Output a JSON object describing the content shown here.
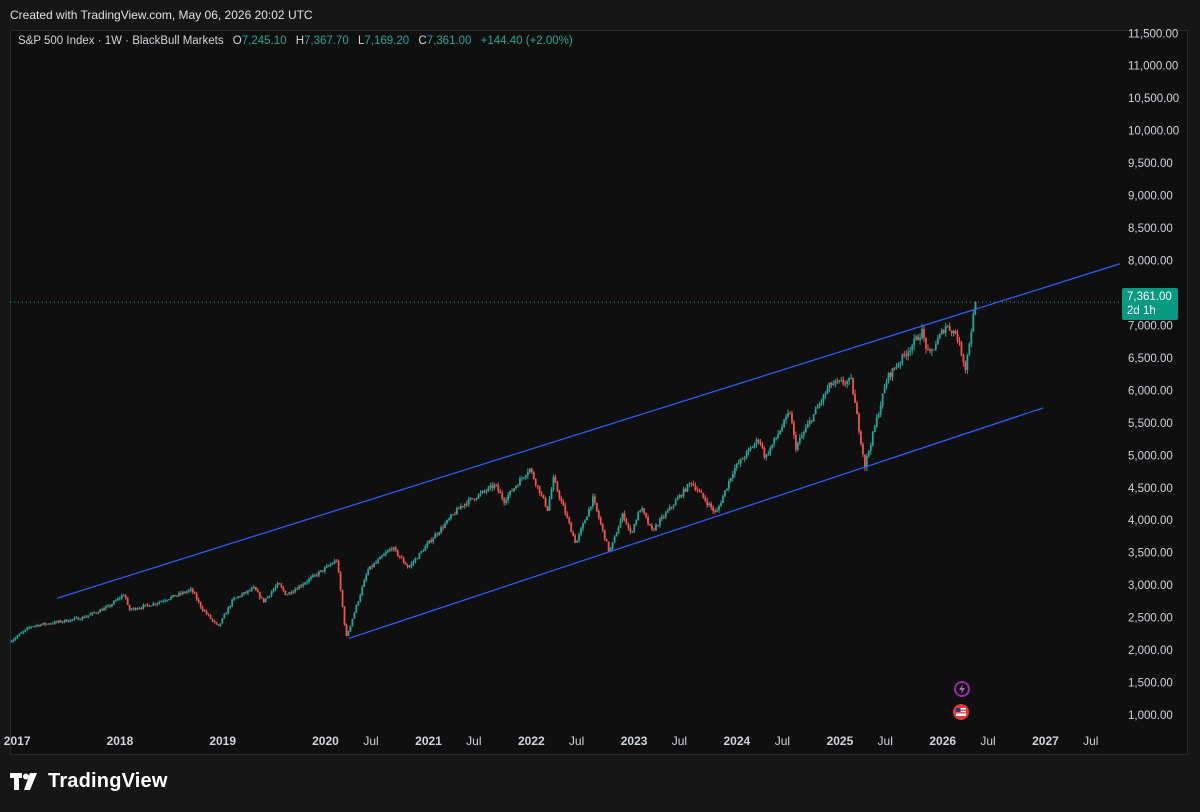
{
  "header": {
    "created_text": "Created with TradingView.com, May 06, 2026 20:02 UTC"
  },
  "legend": {
    "symbol": "S&P 500 Index · 1W · BlackBull Markets",
    "open_label": "O",
    "open": "7,245.10",
    "high_label": "H",
    "high": "7,367.70",
    "low_label": "L",
    "low": "7,169.20",
    "close_label": "C",
    "close": "7,361.00",
    "change": "+144.40 (+2.00%)"
  },
  "price_tag": {
    "price": "7,361.00",
    "countdown": "2d 1h"
  },
  "footer": {
    "brand": "TradingView"
  },
  "icons": {
    "event1": "lightning-icon",
    "event2": "us-flag-icon"
  },
  "colors": {
    "background": "#0f0f0f",
    "up": "#26a69a",
    "down": "#ef5350",
    "trendline": "#2962ff",
    "price_line": "#26a69a"
  },
  "chart_data": {
    "type": "candlestick",
    "title": "S&P 500 Index · 1W · BlackBull Markets",
    "interval": "1W",
    "y_axis": {
      "position": "right",
      "ticks": [
        "1,000.00",
        "1,500.00",
        "2,000.00",
        "2,500.00",
        "3,000.00",
        "3,500.00",
        "4,000.00",
        "4,500.00",
        "5,000.00",
        "5,500.00",
        "6,000.00",
        "6,500.00",
        "7,000.00",
        "7,500.00",
        "8,000.00",
        "8,500.00",
        "9,000.00",
        "9,500.00",
        "10,000.00",
        "10,500.00",
        "11,000.00",
        "11,500.00"
      ],
      "range": [
        800,
        11550
      ]
    },
    "x_axis": {
      "range": [
        "2016-12-15",
        "2027-10-01"
      ],
      "ticks": [
        {
          "label": "2017",
          "date": "2017-01-01",
          "bold": true
        },
        {
          "label": "2018",
          "date": "2018-01-01",
          "bold": true
        },
        {
          "label": "2019",
          "date": "2019-01-01",
          "bold": true
        },
        {
          "label": "2020",
          "date": "2020-01-01",
          "bold": true
        },
        {
          "label": "Jul",
          "date": "2020-07-01",
          "bold": false
        },
        {
          "label": "2021",
          "date": "2021-01-01",
          "bold": true
        },
        {
          "label": "Jul",
          "date": "2021-07-01",
          "bold": false
        },
        {
          "label": "2022",
          "date": "2022-01-01",
          "bold": true
        },
        {
          "label": "Jul",
          "date": "2022-07-01",
          "bold": false
        },
        {
          "label": "2023",
          "date": "2023-01-01",
          "bold": true
        },
        {
          "label": "Jul",
          "date": "2023-07-01",
          "bold": false
        },
        {
          "label": "2024",
          "date": "2024-01-01",
          "bold": true
        },
        {
          "label": "Jul",
          "date": "2024-07-01",
          "bold": false
        },
        {
          "label": "2025",
          "date": "2025-01-01",
          "bold": true
        },
        {
          "label": "Jul",
          "date": "2025-07-01",
          "bold": false
        },
        {
          "label": "2026",
          "date": "2026-01-01",
          "bold": true
        },
        {
          "label": "Jul",
          "date": "2026-07-01",
          "bold": false
        },
        {
          "label": "2027",
          "date": "2027-01-01",
          "bold": true
        },
        {
          "label": "Jul",
          "date": "2027-07-01",
          "bold": false
        }
      ]
    },
    "grid": false,
    "price_path": [
      [
        "2016-12-20",
        2150
      ],
      [
        "2017-03-01",
        2370
      ],
      [
        "2017-06-01",
        2430
      ],
      [
        "2017-09-01",
        2500
      ],
      [
        "2017-12-01",
        2670
      ],
      [
        "2018-01-26",
        2870
      ],
      [
        "2018-02-09",
        2620
      ],
      [
        "2018-05-01",
        2700
      ],
      [
        "2018-09-21",
        2930
      ],
      [
        "2018-10-26",
        2650
      ],
      [
        "2018-12-24",
        2350
      ],
      [
        "2019-02-15",
        2780
      ],
      [
        "2019-04-30",
        2950
      ],
      [
        "2019-06-03",
        2750
      ],
      [
        "2019-07-26",
        3020
      ],
      [
        "2019-08-23",
        2850
      ],
      [
        "2019-12-31",
        3230
      ],
      [
        "2020-02-19",
        3390
      ],
      [
        "2020-03-23",
        2190
      ],
      [
        "2020-06-08",
        3230
      ],
      [
        "2020-09-02",
        3580
      ],
      [
        "2020-10-30",
        3270
      ],
      [
        "2021-01-29",
        3750
      ],
      [
        "2021-05-07",
        4230
      ],
      [
        "2021-09-03",
        4540
      ],
      [
        "2021-10-04",
        4300
      ],
      [
        "2022-01-03",
        4800
      ],
      [
        "2022-03-08",
        4170
      ],
      [
        "2022-03-29",
        4630
      ],
      [
        "2022-06-17",
        3640
      ],
      [
        "2022-08-16",
        4330
      ],
      [
        "2022-10-14",
        3500
      ],
      [
        "2022-12-01",
        4100
      ],
      [
        "2022-12-28",
        3790
      ],
      [
        "2023-02-02",
        4200
      ],
      [
        "2023-03-13",
        3830
      ],
      [
        "2023-07-31",
        4590
      ],
      [
        "2023-10-27",
        4100
      ],
      [
        "2023-12-29",
        4780
      ],
      [
        "2024-03-28",
        5260
      ],
      [
        "2024-04-19",
        4960
      ],
      [
        "2024-07-16",
        5670
      ],
      [
        "2024-08-05",
        5120
      ],
      [
        "2024-12-06",
        6090
      ],
      [
        "2025-02-19",
        6140
      ],
      [
        "2025-04-08",
        4840
      ],
      [
        "2025-06-27",
        6200
      ],
      [
        "2025-10-28",
        6900
      ],
      [
        "2025-11-21",
        6520
      ],
      [
        "2026-01-20",
        7000
      ],
      [
        "2026-02-27",
        6870
      ],
      [
        "2026-03-31",
        6350
      ],
      [
        "2026-05-06",
        7361
      ]
    ],
    "last_price": 7361.0,
    "trendlines": [
      {
        "name": "upper",
        "from": [
          "2017-06-01",
          2800
        ],
        "to": [
          "2027-10-01",
          7950
        ]
      },
      {
        "name": "lower",
        "from": [
          "2020-04-01",
          2180
        ],
        "to": [
          "2027-01-01",
          5730
        ]
      }
    ],
    "events": [
      "lightning-icon",
      "us-flag-icon"
    ]
  }
}
